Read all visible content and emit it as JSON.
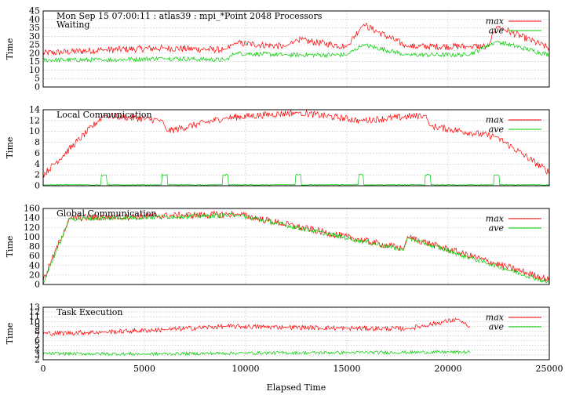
{
  "chart_data": [
    {
      "type": "line",
      "title": "Mon Sep 15 07:00:11 : atlas39 : mpi_*Point 2048 Processors",
      "subtitle": "Waiting",
      "ylabel": "Time",
      "ylim": [
        0,
        45
      ],
      "yticks": [
        0,
        5,
        10,
        15,
        20,
        25,
        30,
        35,
        40,
        45
      ],
      "xlim": [
        0,
        25000
      ],
      "grid": true,
      "legend_position": "top-right",
      "series": [
        {
          "name": "max",
          "color": "#ff0000",
          "x": [
            0,
            3000,
            6000,
            9000,
            9500,
            12000,
            12500,
            15000,
            15800,
            18000,
            21000,
            22000,
            22400,
            25000
          ],
          "y": [
            20,
            22,
            23,
            22,
            26,
            24,
            28,
            24,
            37,
            24,
            24,
            24,
            36,
            23
          ]
        },
        {
          "name": "ave",
          "color": "#00cc00",
          "x": [
            0,
            3000,
            6000,
            9000,
            9500,
            12000,
            15000,
            15800,
            18000,
            21000,
            22400,
            25000
          ],
          "y": [
            16,
            16,
            17,
            16,
            20,
            19,
            19,
            25,
            19,
            19,
            27,
            19
          ]
        }
      ]
    },
    {
      "type": "line",
      "title": "Local Communication",
      "ylabel": "Time",
      "ylim": [
        0,
        14
      ],
      "yticks": [
        0,
        2,
        4,
        6,
        8,
        10,
        12,
        14
      ],
      "xlim": [
        0,
        25000
      ],
      "grid": true,
      "legend_position": "top-right",
      "series": [
        {
          "name": "max",
          "color": "#ff0000",
          "x": [
            0,
            3000,
            5900,
            6100,
            9000,
            12600,
            15700,
            18900,
            19100,
            22400,
            25000
          ],
          "y": [
            2,
            13,
            12,
            10,
            12.5,
            13.5,
            12,
            13,
            11,
            9,
            2.5
          ]
        },
        {
          "name": "ave",
          "color": "#00cc00",
          "x": [
            0,
            3000,
            6000,
            9000,
            12600,
            15700,
            19000,
            22400,
            25000
          ],
          "y": [
            0.2,
            2,
            2,
            2,
            2,
            2,
            2,
            2,
            0.2
          ]
        }
      ]
    },
    {
      "type": "line",
      "title": "Global Communication",
      "ylabel": "Time",
      "ylim": [
        0,
        160
      ],
      "yticks": [
        0,
        20,
        40,
        60,
        80,
        100,
        120,
        140,
        160
      ],
      "xlim": [
        0,
        25000
      ],
      "grid": true,
      "legend_position": "top-right",
      "series": [
        {
          "name": "max",
          "color": "#ff0000",
          "x": [
            0,
            1300,
            9600,
            17800,
            18000,
            25000
          ],
          "y": [
            8,
            140,
            148,
            75,
            100,
            10
          ]
        },
        {
          "name": "ave",
          "color": "#00cc00",
          "x": [
            0,
            1300,
            9600,
            17800,
            18000,
            25000
          ],
          "y": [
            3,
            138,
            146,
            73,
            98,
            4
          ]
        }
      ]
    },
    {
      "type": "line",
      "title": "Task Execution",
      "ylabel": "Time",
      "xlabel": "Elapsed Time",
      "ylim": [
        2,
        13
      ],
      "yticks": [
        2,
        3,
        4,
        5,
        6,
        7,
        8,
        9,
        10,
        11,
        12,
        13
      ],
      "xlim": [
        0,
        25000
      ],
      "xticks": [
        0,
        5000,
        10000,
        15000,
        20000,
        25000
      ],
      "grid": true,
      "legend_position": "top-right",
      "series": [
        {
          "name": "max",
          "color": "#ff0000",
          "x": [
            0,
            3000,
            6000,
            9000,
            12000,
            15000,
            18000,
            20500,
            21100
          ],
          "y": [
            7.5,
            7.8,
            8.3,
            9,
            8.8,
            8.6,
            8.5,
            10.5,
            8.5
          ]
        },
        {
          "name": "ave",
          "color": "#00cc00",
          "x": [
            0,
            5000,
            10000,
            15000,
            21100
          ],
          "y": [
            3.3,
            3.2,
            3.4,
            3.5,
            3.6
          ]
        }
      ]
    }
  ]
}
